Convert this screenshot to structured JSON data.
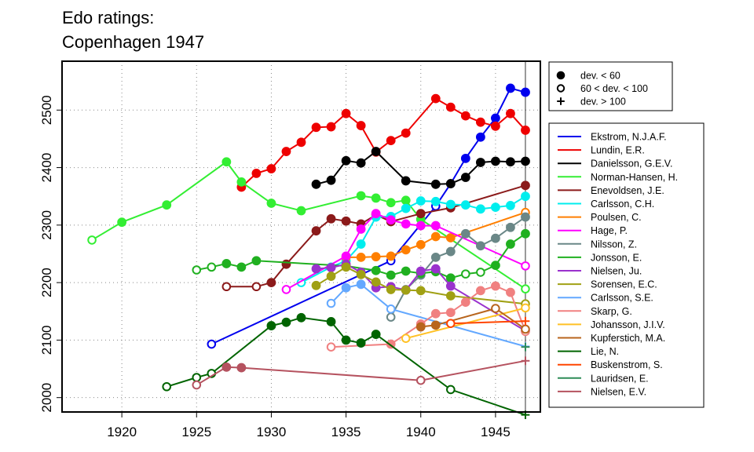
{
  "chart_data": {
    "type": "line",
    "title_lines": [
      "Edo ratings:",
      "Copenhagen 1947"
    ],
    "xlim": [
      1916,
      1948
    ],
    "ylim": [
      1975,
      2585
    ],
    "x_ticks": [
      1920,
      1925,
      1930,
      1935,
      1940,
      1945
    ],
    "y_ticks": [
      2000,
      2100,
      2200,
      2300,
      2400,
      2500
    ],
    "grid": true,
    "vertical_reference_x": 1947,
    "marker_legend": [
      {
        "marker": "filled",
        "label": "dev. < 60"
      },
      {
        "marker": "open",
        "label": "60 < dev. < 100"
      },
      {
        "marker": "plus",
        "label": "dev. > 100"
      }
    ],
    "series": [
      {
        "name": "Ekstrom, N.J.A.F.",
        "color": "#0000ee",
        "points": [
          [
            1926,
            2093,
            "o"
          ],
          [
            1938,
            2238,
            "o"
          ],
          [
            1941,
            2333,
            "o"
          ],
          [
            1942,
            2372,
            "o"
          ],
          [
            1943,
            2416,
            "f"
          ],
          [
            1944,
            2453,
            "f"
          ],
          [
            1945,
            2486,
            "f"
          ],
          [
            1946,
            2538,
            "f"
          ],
          [
            1947,
            2531,
            "f"
          ]
        ]
      },
      {
        "name": "Lundin, E.R.",
        "color": "#ee0000",
        "points": [
          [
            1928,
            2366,
            "f"
          ],
          [
            1929,
            2390,
            "f"
          ],
          [
            1930,
            2398,
            "f"
          ],
          [
            1931,
            2428,
            "f"
          ],
          [
            1932,
            2444,
            "f"
          ],
          [
            1933,
            2470,
            "f"
          ],
          [
            1934,
            2471,
            "f"
          ],
          [
            1935,
            2494,
            "f"
          ],
          [
            1936,
            2473,
            "f"
          ],
          [
            1937,
            2427,
            "f"
          ],
          [
            1938,
            2447,
            "f"
          ],
          [
            1939,
            2460,
            "f"
          ],
          [
            1941,
            2520,
            "f"
          ],
          [
            1942,
            2505,
            "f"
          ],
          [
            1943,
            2490,
            "f"
          ],
          [
            1944,
            2479,
            "f"
          ],
          [
            1945,
            2472,
            "f"
          ],
          [
            1946,
            2494,
            "f"
          ],
          [
            1947,
            2465,
            "f"
          ]
        ]
      },
      {
        "name": "Danielsson, G.E.V.",
        "color": "#000000",
        "points": [
          [
            1933,
            2371,
            "f"
          ],
          [
            1934,
            2378,
            "f"
          ],
          [
            1935,
            2412,
            "f"
          ],
          [
            1936,
            2408,
            "f"
          ],
          [
            1937,
            2428,
            "f"
          ],
          [
            1939,
            2377,
            "f"
          ],
          [
            1941,
            2371,
            "f"
          ],
          [
            1942,
            2372,
            "f"
          ],
          [
            1943,
            2383,
            "f"
          ],
          [
            1944,
            2409,
            "f"
          ],
          [
            1945,
            2411,
            "f"
          ],
          [
            1946,
            2410,
            "f"
          ],
          [
            1947,
            2411,
            "f"
          ]
        ]
      },
      {
        "name": "Norman-Hansen, H.",
        "color": "#33ee33",
        "points": [
          [
            1918,
            2274,
            "o"
          ],
          [
            1920,
            2305,
            "f"
          ],
          [
            1923,
            2335,
            "f"
          ],
          [
            1927,
            2410,
            "f"
          ],
          [
            1928,
            2375,
            "f"
          ],
          [
            1930,
            2338,
            "f"
          ],
          [
            1932,
            2325,
            "f"
          ],
          [
            1936,
            2351,
            "f"
          ],
          [
            1937,
            2347,
            "f"
          ],
          [
            1938,
            2339,
            "f"
          ],
          [
            1939,
            2343,
            "f"
          ],
          [
            1940,
            2310,
            "f"
          ],
          [
            1947,
            2189,
            "o"
          ]
        ]
      },
      {
        "name": "Enevoldsen, J.E.",
        "color": "#8b1a1a",
        "points": [
          [
            1927,
            2193,
            "o"
          ],
          [
            1929,
            2193,
            "o"
          ],
          [
            1930,
            2200,
            "f"
          ],
          [
            1931,
            2232,
            "f"
          ],
          [
            1933,
            2290,
            "f"
          ],
          [
            1934,
            2311,
            "f"
          ],
          [
            1935,
            2307,
            "f"
          ],
          [
            1936,
            2302,
            "f"
          ],
          [
            1937,
            2318,
            "f"
          ],
          [
            1938,
            2306,
            "f"
          ],
          [
            1940,
            2320,
            "f"
          ],
          [
            1942,
            2330,
            "f"
          ],
          [
            1947,
            2369,
            "f"
          ]
        ]
      },
      {
        "name": "Carlsson, C.H.",
        "color": "#00eeee",
        "points": [
          [
            1932,
            2200,
            "o"
          ],
          [
            1934,
            2227,
            "f"
          ],
          [
            1935,
            2238,
            "f"
          ],
          [
            1936,
            2267,
            "f"
          ],
          [
            1937,
            2314,
            "f"
          ],
          [
            1938,
            2315,
            "f"
          ],
          [
            1939,
            2329,
            "f"
          ],
          [
            1940,
            2342,
            "f"
          ],
          [
            1941,
            2341,
            "f"
          ],
          [
            1942,
            2336,
            "f"
          ],
          [
            1943,
            2335,
            "f"
          ],
          [
            1944,
            2328,
            "f"
          ],
          [
            1945,
            2331,
            "f"
          ],
          [
            1946,
            2334,
            "f"
          ],
          [
            1947,
            2350,
            "f"
          ]
        ]
      },
      {
        "name": "Poulsen, C.",
        "color": "#ff7f00",
        "points": [
          [
            1935,
            2244,
            "f"
          ],
          [
            1936,
            2244,
            "f"
          ],
          [
            1937,
            2245,
            "f"
          ],
          [
            1938,
            2246,
            "f"
          ],
          [
            1939,
            2257,
            "f"
          ],
          [
            1940,
            2266,
            "f"
          ],
          [
            1941,
            2280,
            "f"
          ],
          [
            1942,
            2278,
            "f"
          ],
          [
            1947,
            2322,
            "o"
          ]
        ]
      },
      {
        "name": "Hage, P.",
        "color": "#ff00ff",
        "points": [
          [
            1931,
            2188,
            "o"
          ],
          [
            1935,
            2246,
            "f"
          ],
          [
            1936,
            2293,
            "f"
          ],
          [
            1937,
            2320,
            "f"
          ],
          [
            1938,
            2309,
            "f"
          ],
          [
            1939,
            2302,
            "f"
          ],
          [
            1940,
            2299,
            "f"
          ],
          [
            1941,
            2299,
            "f"
          ],
          [
            1947,
            2229,
            "o"
          ]
        ]
      },
      {
        "name": "Nilsson, Z.",
        "color": "#6a8787",
        "points": [
          [
            1938,
            2140,
            "o"
          ],
          [
            1939,
            2188,
            "o"
          ],
          [
            1940,
            2213,
            "f"
          ],
          [
            1941,
            2244,
            "f"
          ],
          [
            1942,
            2254,
            "f"
          ],
          [
            1943,
            2285,
            "f"
          ],
          [
            1944,
            2264,
            "f"
          ],
          [
            1945,
            2277,
            "f"
          ],
          [
            1946,
            2296,
            "f"
          ],
          [
            1947,
            2314,
            "f"
          ]
        ]
      },
      {
        "name": "Jonsson, E.",
        "color": "#20b020",
        "points": [
          [
            1925,
            2222,
            "o"
          ],
          [
            1926,
            2227,
            "o"
          ],
          [
            1927,
            2233,
            "f"
          ],
          [
            1928,
            2227,
            "f"
          ],
          [
            1929,
            2238,
            "f"
          ],
          [
            1935,
            2229,
            "f"
          ],
          [
            1937,
            2221,
            "f"
          ],
          [
            1938,
            2213,
            "f"
          ],
          [
            1939,
            2220,
            "f"
          ],
          [
            1940,
            2216,
            "f"
          ],
          [
            1941,
            2219,
            "f"
          ],
          [
            1942,
            2208,
            "f"
          ],
          [
            1943,
            2215,
            "o"
          ],
          [
            1944,
            2218,
            "o"
          ],
          [
            1945,
            2230,
            "f"
          ],
          [
            1946,
            2267,
            "f"
          ],
          [
            1947,
            2285,
            "f"
          ]
        ]
      },
      {
        "name": "Nielsen, Ju.",
        "color": "#9a32cd",
        "points": [
          [
            1933,
            2224,
            "f"
          ],
          [
            1934,
            2226,
            "f"
          ],
          [
            1935,
            2232,
            "f"
          ],
          [
            1936,
            2218,
            "f"
          ],
          [
            1937,
            2191,
            "f"
          ],
          [
            1938,
            2193,
            "f"
          ],
          [
            1939,
            2187,
            "f"
          ],
          [
            1940,
            2220,
            "f"
          ],
          [
            1941,
            2224,
            "f"
          ],
          [
            1942,
            2194,
            "f"
          ],
          [
            1947,
            2116,
            "o"
          ]
        ]
      },
      {
        "name": "Sorensen, E.C.",
        "color": "#a0a014",
        "points": [
          [
            1933,
            2195,
            "f"
          ],
          [
            1934,
            2211,
            "f"
          ],
          [
            1935,
            2227,
            "f"
          ],
          [
            1936,
            2214,
            "f"
          ],
          [
            1937,
            2201,
            "f"
          ],
          [
            1938,
            2188,
            "f"
          ],
          [
            1939,
            2187,
            "f"
          ],
          [
            1940,
            2186,
            "f"
          ],
          [
            1942,
            2177,
            "f"
          ],
          [
            1947,
            2163,
            "o"
          ]
        ]
      },
      {
        "name": "Carlsson, S.E.",
        "color": "#63a8ff",
        "points": [
          [
            1934,
            2164,
            "o"
          ],
          [
            1935,
            2191,
            "f"
          ],
          [
            1936,
            2197,
            "f"
          ],
          [
            1938,
            2154,
            "o"
          ],
          [
            1947,
            2089,
            "plus"
          ]
        ]
      },
      {
        "name": "Skarp, G.",
        "color": "#f08080",
        "points": [
          [
            1934,
            2088,
            "o"
          ],
          [
            1938,
            2093,
            "f"
          ],
          [
            1940,
            2128,
            "f"
          ],
          [
            1941,
            2146,
            "f"
          ],
          [
            1942,
            2148,
            "f"
          ],
          [
            1943,
            2166,
            "f"
          ],
          [
            1944,
            2186,
            "f"
          ],
          [
            1945,
            2194,
            "f"
          ],
          [
            1946,
            2183,
            "f"
          ],
          [
            1947,
            2115,
            "o"
          ]
        ]
      },
      {
        "name": "Johansson, J.I.V.",
        "color": "#ffc125",
        "points": [
          [
            1939,
            2103,
            "o"
          ],
          [
            1947,
            2156,
            "o"
          ]
        ]
      },
      {
        "name": "Kupferstich, M.A.",
        "color": "#b8651d",
        "points": [
          [
            1940,
            2123,
            "f"
          ],
          [
            1941,
            2126,
            "f"
          ],
          [
            1945,
            2155,
            "o"
          ],
          [
            1947,
            2119,
            "o"
          ]
        ]
      },
      {
        "name": "Lie, N.",
        "color": "#006400",
        "points": [
          [
            1923,
            2019,
            "o"
          ],
          [
            1925,
            2035,
            "o"
          ],
          [
            1926,
            2042,
            "o"
          ],
          [
            1930,
            2125,
            "f"
          ],
          [
            1931,
            2131,
            "f"
          ],
          [
            1932,
            2139,
            "f"
          ],
          [
            1934,
            2132,
            "f"
          ],
          [
            1935,
            2100,
            "f"
          ],
          [
            1936,
            2095,
            "f"
          ],
          [
            1937,
            2110,
            "f"
          ],
          [
            1942,
            2014,
            "o"
          ],
          [
            1947,
            1970,
            "plus"
          ]
        ]
      },
      {
        "name": "Buskenstrom, S.",
        "color": "#ff4500",
        "points": [
          [
            1942,
            2129,
            "o"
          ],
          [
            1947,
            2133,
            "plus"
          ]
        ]
      },
      {
        "name": "Lauridsen, E.",
        "color": "#2e8b57",
        "points": [
          [
            1947,
            2088,
            "plus"
          ]
        ]
      },
      {
        "name": "Nielsen, E.V.",
        "color": "#b5525f",
        "points": [
          [
            1925,
            2022,
            "o"
          ],
          [
            1927,
            2053,
            "f"
          ],
          [
            1928,
            2052,
            "f"
          ],
          [
            1940,
            2030,
            "o"
          ],
          [
            1947,
            2064,
            "plus"
          ]
        ]
      }
    ]
  }
}
